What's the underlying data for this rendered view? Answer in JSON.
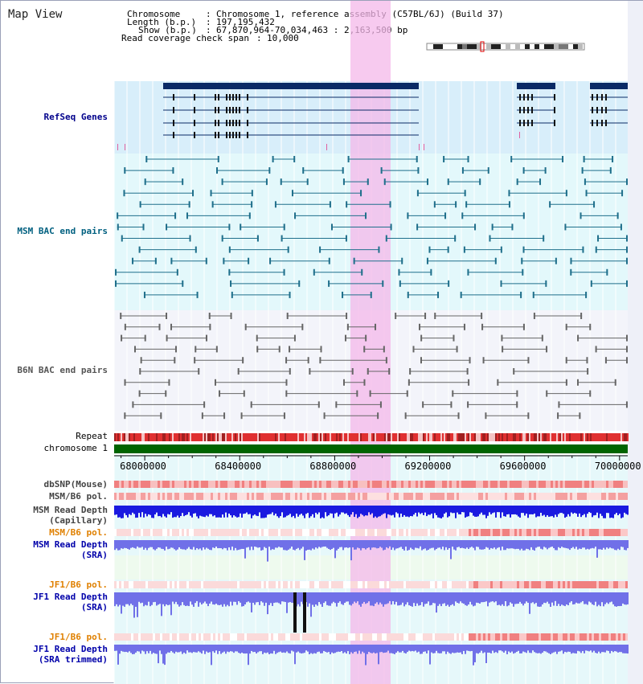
{
  "map_title": "Map View",
  "header": {
    "chromosome_label": "Chromosome",
    "chromosome_value": "Chromosome 1, reference assembly (C57BL/6J) (Build 37)",
    "length_label": "Length (b.p.)",
    "length_value": "197,195,432",
    "show_label": "Show (b.p.)",
    "show_value": "67,870,964-70,034,463 : 2,163,500 bp",
    "coverage_label": "Read coverage check span",
    "coverage_value": "10,000",
    "separator": ":"
  },
  "tracks": {
    "refseq": "RefSeq Genes",
    "msm_bac": "MSM BAC end pairs",
    "b6n_bac": "B6N BAC end pairs",
    "repeat": "Repeat",
    "chromosome": "chromosome 1",
    "dbsnp": "dbSNP(Mouse)",
    "msm_b6_pol_1": "MSM/B6 pol.",
    "msm_read_depth_cap_1": "MSM Read Depth",
    "msm_read_depth_cap_2": "(Capillary)",
    "msm_b6_pol_2": "MSM/B6 pol.",
    "msm_read_depth_sra_1": "MSM Read Depth",
    "msm_read_depth_sra_2": "(SRA)",
    "jf1_b6_pol_1": "JF1/B6 pol.",
    "jf1_read_depth_sra_1": "JF1 Read Depth",
    "jf1_read_depth_sra_2": "(SRA)",
    "jf1_b6_pol_2": "JF1/B6 pol.",
    "jf1_read_depth_trim_1": "JF1 Read Depth",
    "jf1_read_depth_trim_2": "(SRA trimmed)"
  },
  "axis": {
    "ticks": [
      "68000000",
      "68400000",
      "68800000",
      "69200000",
      "69600000",
      "70000000"
    ],
    "tick_values": [
      68000000,
      68400000,
      68800000,
      69200000,
      69600000,
      70000000
    ],
    "start": 67870964,
    "end": 70034463
  },
  "colors": {
    "refseq_label": "#00008b",
    "msm_label": "#006080",
    "b6n_label": "#555555",
    "orange_label": "#e08000",
    "blue_label": "#0000aa",
    "gene": "#0a2a66",
    "msm_bac": "#1f6f8b",
    "b6n_bac": "#666666",
    "highlight": "#f4b8ea",
    "chromosome_bar": "#006400"
  }
}
